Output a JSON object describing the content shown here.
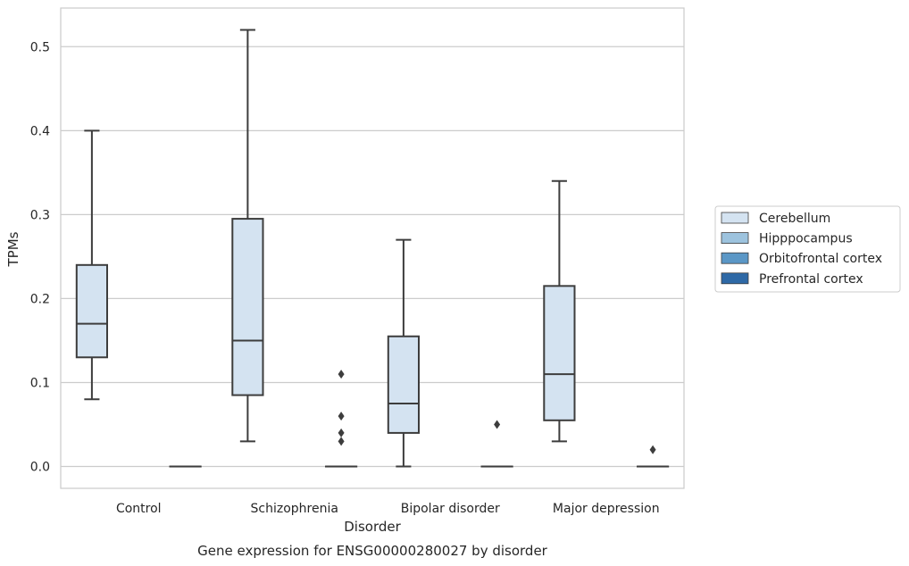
{
  "chart_data": {
    "type": "box",
    "title": "Gene expression for ENSG00000280027 by disorder",
    "xlabel": "Disorder",
    "ylabel": "TPMs",
    "ylim": [
      -0.026,
      0.546
    ],
    "yticks": [
      "0.0",
      "0.1",
      "0.2",
      "0.3",
      "0.4",
      "0.5"
    ],
    "categories": [
      "Control",
      "Schizophrenia",
      "Bipolar disorder",
      "Major depression"
    ],
    "grid": true,
    "legend_position": "right",
    "series": [
      {
        "name": "Cerebellum",
        "color": "#d4e3f1",
        "boxes": [
          {
            "min": 0.08,
            "q1": 0.13,
            "median": 0.17,
            "q3": 0.24,
            "max": 0.4,
            "outliers": []
          },
          {
            "min": 0.03,
            "q1": 0.085,
            "median": 0.15,
            "q3": 0.295,
            "max": 0.52,
            "outliers": []
          },
          {
            "min": 0.0,
            "q1": 0.04,
            "median": 0.075,
            "q3": 0.155,
            "max": 0.27,
            "outliers": []
          },
          {
            "min": 0.03,
            "q1": 0.055,
            "median": 0.11,
            "q3": 0.215,
            "max": 0.34,
            "outliers": []
          }
        ]
      },
      {
        "name": "Hipppocampus",
        "color": "#9dc3de",
        "boxes": []
      },
      {
        "name": "Orbitofrontal cortex",
        "color": "#5b97c6",
        "boxes": []
      },
      {
        "name": "Prefrontal cortex",
        "color": "#2e69a6",
        "boxes": [
          {
            "min": 0.0,
            "q1": 0.0,
            "median": 0.0,
            "q3": 0.0,
            "max": 0.0,
            "outliers": []
          },
          {
            "min": 0.0,
            "q1": 0.0,
            "median": 0.0,
            "q3": 0.0,
            "max": 0.0,
            "outliers": [
              0.11,
              0.06,
              0.04,
              0.03
            ]
          },
          {
            "min": 0.0,
            "q1": 0.0,
            "median": 0.0,
            "q3": 0.0,
            "max": 0.0,
            "outliers": [
              0.05
            ]
          },
          {
            "min": 0.0,
            "q1": 0.0,
            "median": 0.0,
            "q3": 0.0,
            "max": 0.0,
            "outliers": [
              0.02
            ]
          }
        ]
      }
    ]
  }
}
